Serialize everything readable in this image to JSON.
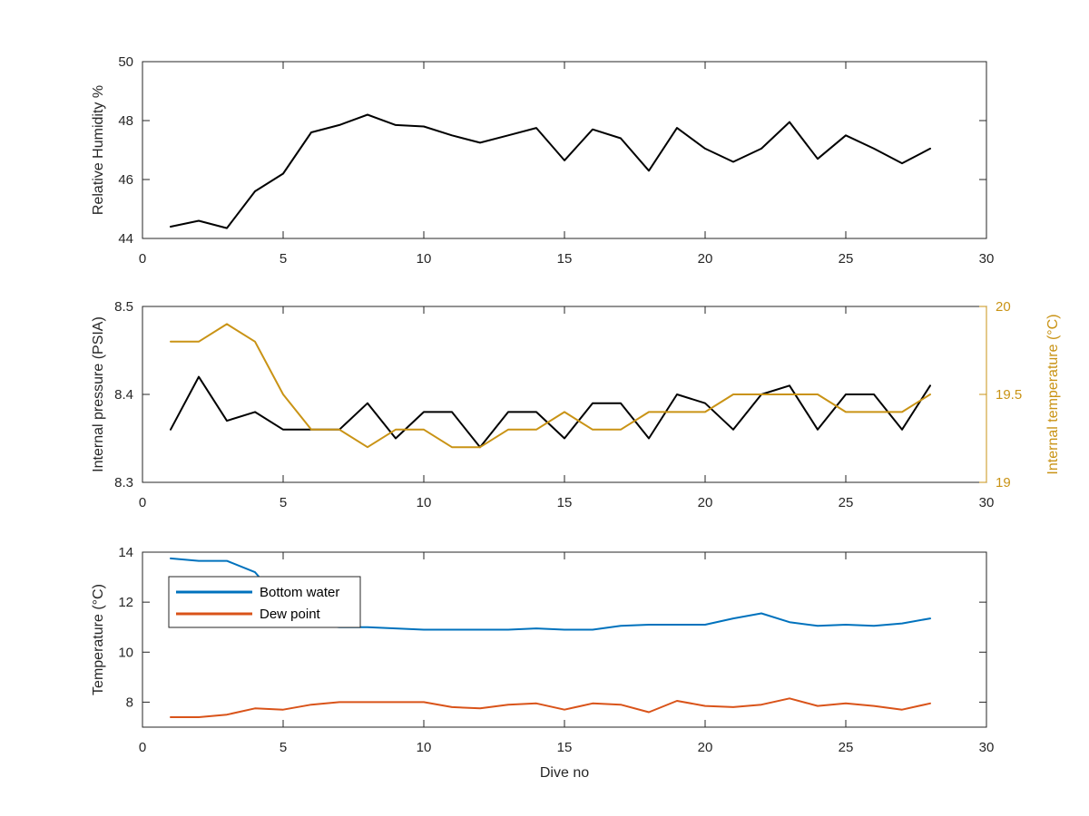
{
  "chart_data": [
    {
      "type": "line",
      "x": [
        1,
        2,
        3,
        4,
        5,
        6,
        7,
        8,
        9,
        10,
        11,
        12,
        13,
        14,
        15,
        16,
        17,
        18,
        19,
        20,
        21,
        22,
        23,
        24,
        25,
        26,
        27,
        28
      ],
      "series": [
        {
          "axis": "left",
          "color": "#000000",
          "values": [
            44.4,
            44.6,
            44.35,
            45.6,
            46.2,
            47.6,
            47.85,
            48.2,
            47.85,
            47.8,
            47.5,
            47.25,
            47.5,
            47.75,
            46.65,
            47.7,
            47.4,
            46.3,
            47.75,
            47.05,
            46.6,
            47.05,
            47.95,
            46.7,
            47.5,
            47.05,
            46.55,
            47.05
          ]
        }
      ],
      "xlim": [
        0,
        30
      ],
      "xticks": [
        0,
        5,
        10,
        15,
        20,
        25,
        30
      ],
      "ylim": [
        44,
        50
      ],
      "yticks": [
        44,
        46,
        48,
        50
      ],
      "xlabel": "",
      "ylabel": "Relative Humidity %",
      "title": ""
    },
    {
      "type": "line",
      "x": [
        1,
        2,
        3,
        4,
        5,
        6,
        7,
        8,
        9,
        10,
        11,
        12,
        13,
        14,
        15,
        16,
        17,
        18,
        19,
        20,
        21,
        22,
        23,
        24,
        25,
        26,
        27,
        28
      ],
      "series": [
        {
          "axis": "left",
          "color": "#000000",
          "values": [
            8.36,
            8.42,
            8.37,
            8.38,
            8.36,
            8.36,
            8.36,
            8.39,
            8.35,
            8.38,
            8.38,
            8.34,
            8.38,
            8.38,
            8.35,
            8.39,
            8.39,
            8.35,
            8.4,
            8.39,
            8.36,
            8.4,
            8.41,
            8.36,
            8.4,
            8.4,
            8.36,
            8.41
          ]
        },
        {
          "axis": "right",
          "color": "#c99315",
          "values": [
            19.8,
            19.8,
            19.9,
            19.8,
            19.5,
            19.3,
            19.3,
            19.2,
            19.3,
            19.3,
            19.2,
            19.2,
            19.3,
            19.3,
            19.4,
            19.3,
            19.3,
            19.4,
            19.4,
            19.4,
            19.5,
            19.5,
            19.5,
            19.5,
            19.4,
            19.4,
            19.4,
            19.5
          ]
        }
      ],
      "xlim": [
        0,
        30
      ],
      "xticks": [
        0,
        5,
        10,
        15,
        20,
        25,
        30
      ],
      "ylim": [
        8.3,
        8.5
      ],
      "yticks": [
        8.3,
        8.4,
        8.5
      ],
      "ylim_right": [
        19,
        20
      ],
      "yticks_right": [
        19,
        19.5,
        20
      ],
      "xlabel": "",
      "ylabel": "Internal pressure (PSIA)",
      "ylabel_right": "Internal temperature (°C)",
      "title": ""
    },
    {
      "type": "line",
      "x": [
        1,
        2,
        3,
        4,
        5,
        6,
        7,
        8,
        9,
        10,
        11,
        12,
        13,
        14,
        15,
        16,
        17,
        18,
        19,
        20,
        21,
        22,
        23,
        24,
        25,
        26,
        27,
        28
      ],
      "series": [
        {
          "name": "Bottom water",
          "axis": "left",
          "color": "#0072bd",
          "values": [
            13.75,
            13.65,
            13.65,
            13.2,
            11.9,
            11.1,
            11.0,
            11.0,
            10.95,
            10.9,
            10.9,
            10.9,
            10.9,
            10.95,
            10.9,
            10.9,
            11.05,
            11.1,
            11.1,
            11.1,
            11.35,
            11.55,
            11.2,
            11.05,
            11.1,
            11.05,
            11.15,
            11.35
          ]
        },
        {
          "name": "Dew point",
          "axis": "left",
          "color": "#d95319",
          "values": [
            7.4,
            7.4,
            7.5,
            7.75,
            7.7,
            7.9,
            8.0,
            8.0,
            8.0,
            8.0,
            7.8,
            7.75,
            7.9,
            7.95,
            7.7,
            7.95,
            7.9,
            7.6,
            8.05,
            7.85,
            7.8,
            7.9,
            8.15,
            7.85,
            7.95,
            7.85,
            7.7,
            7.95
          ]
        }
      ],
      "xlim": [
        0,
        30
      ],
      "xticks": [
        0,
        5,
        10,
        15,
        20,
        25,
        30
      ],
      "ylim": [
        7,
        14
      ],
      "yticks": [
        8,
        10,
        12,
        14
      ],
      "xlabel": "Dive no",
      "ylabel": "Temperature (°C)",
      "legend": "upper-left",
      "title": ""
    }
  ]
}
